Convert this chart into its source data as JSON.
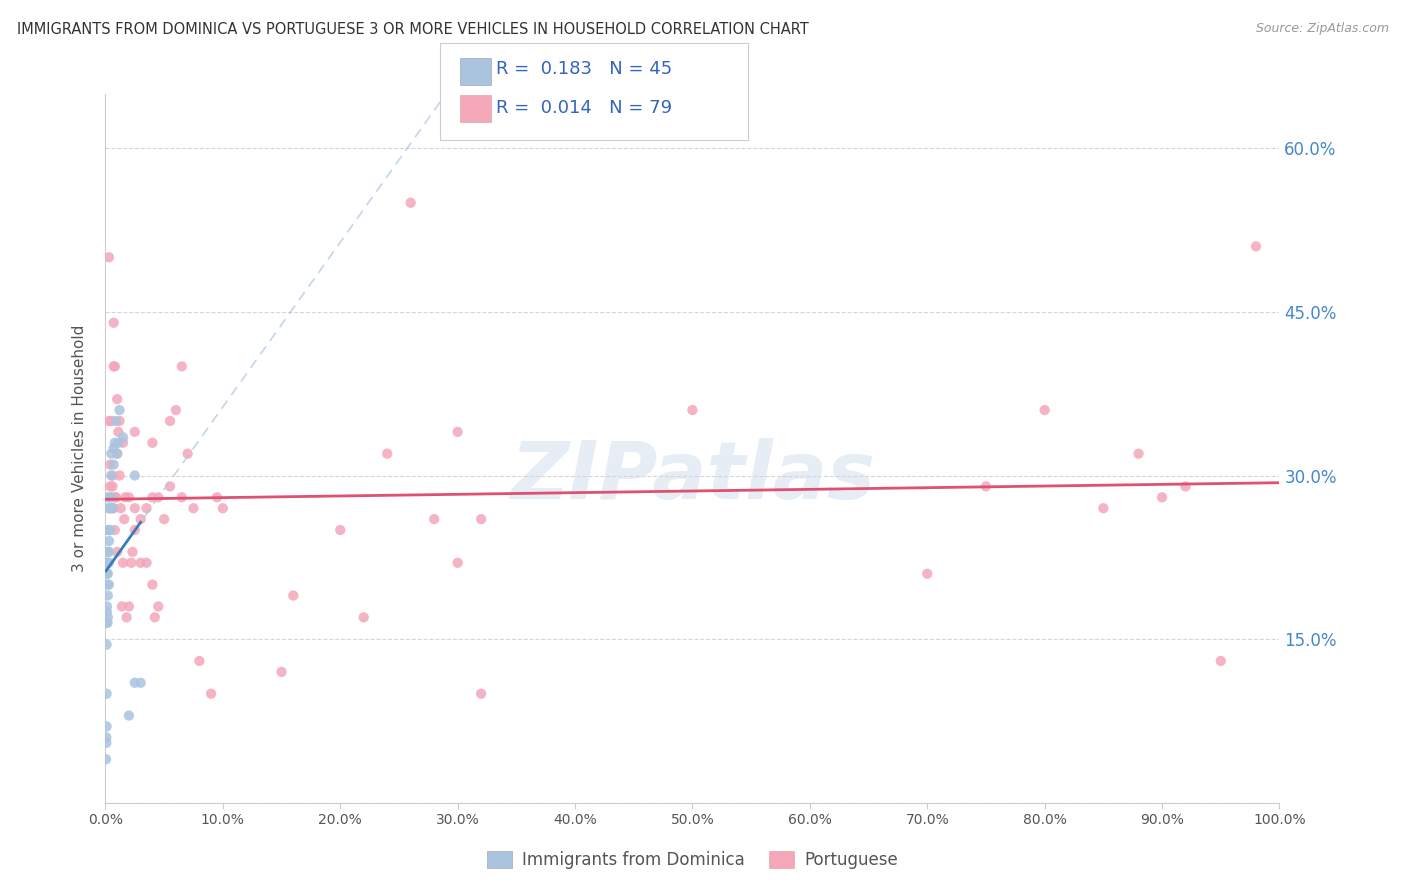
{
  "title": "IMMIGRANTS FROM DOMINICA VS PORTUGUESE 3 OR MORE VEHICLES IN HOUSEHOLD CORRELATION CHART",
  "source": "Source: ZipAtlas.com",
  "ylabel": "3 or more Vehicles in Household",
  "watermark": "ZIPatlas",
  "legend1_label": "Immigrants from Dominica",
  "legend2_label": "Portuguese",
  "R1": 0.183,
  "N1": 45,
  "R2": 0.014,
  "N2": 79,
  "color1": "#aac4e0",
  "color2": "#f4a7b9",
  "line1_color": "#3a7abf",
  "line2_color": "#e05070",
  "dashed_color": "#aac4e0",
  "title_color": "#333333",
  "source_color": "#999999",
  "grid_color": "#cccccc",
  "background_color": "#ffffff",
  "x_ticks": [
    0.0,
    0.1,
    0.2,
    0.3,
    0.4,
    0.5,
    0.6,
    0.7,
    0.8,
    0.9,
    1.0
  ],
  "x_tick_labels": [
    "0.0%",
    "10.0%",
    "20.0%",
    "30.0%",
    "40.0%",
    "50.0%",
    "60.0%",
    "70.0%",
    "80.0%",
    "90.0%",
    "100.0%"
  ],
  "y_ticks": [
    0.0,
    0.15,
    0.3,
    0.45,
    0.6
  ],
  "y_tick_labels": [
    "",
    "15.0%",
    "30.0%",
    "45.0%",
    "60.0%"
  ],
  "blue_scatter_x": [
    0.0005,
    0.0007,
    0.0008,
    0.001,
    0.001,
    0.001,
    0.001,
    0.0012,
    0.0013,
    0.0014,
    0.0015,
    0.0016,
    0.0017,
    0.0018,
    0.002,
    0.002,
    0.002,
    0.002,
    0.0022,
    0.0023,
    0.0025,
    0.003,
    0.003,
    0.003,
    0.003,
    0.003,
    0.0035,
    0.004,
    0.004,
    0.005,
    0.005,
    0.005,
    0.006,
    0.007,
    0.007,
    0.008,
    0.009,
    0.01,
    0.011,
    0.012,
    0.015,
    0.02,
    0.025,
    0.03,
    0.025
  ],
  "blue_scatter_y": [
    0.04,
    0.06,
    0.055,
    0.07,
    0.1,
    0.145,
    0.165,
    0.175,
    0.18,
    0.2,
    0.21,
    0.22,
    0.23,
    0.165,
    0.17,
    0.19,
    0.21,
    0.22,
    0.23,
    0.25,
    0.27,
    0.2,
    0.22,
    0.23,
    0.24,
    0.25,
    0.28,
    0.25,
    0.27,
    0.28,
    0.3,
    0.32,
    0.27,
    0.31,
    0.325,
    0.33,
    0.35,
    0.32,
    0.33,
    0.36,
    0.335,
    0.08,
    0.11,
    0.11,
    0.3
  ],
  "pink_scatter_x": [
    0.002,
    0.003,
    0.004,
    0.004,
    0.005,
    0.005,
    0.006,
    0.006,
    0.007,
    0.007,
    0.008,
    0.008,
    0.009,
    0.01,
    0.01,
    0.011,
    0.012,
    0.013,
    0.014,
    0.015,
    0.015,
    0.016,
    0.017,
    0.018,
    0.02,
    0.02,
    0.022,
    0.023,
    0.025,
    0.025,
    0.03,
    0.03,
    0.035,
    0.035,
    0.04,
    0.04,
    0.042,
    0.045,
    0.05,
    0.055,
    0.06,
    0.065,
    0.07,
    0.075,
    0.08,
    0.09,
    0.095,
    0.1,
    0.15,
    0.16,
    0.2,
    0.22,
    0.24,
    0.26,
    0.28,
    0.3,
    0.32,
    0.5,
    0.7,
    0.75,
    0.8,
    0.85,
    0.88,
    0.9,
    0.92,
    0.95,
    0.98,
    0.003,
    0.007,
    0.008,
    0.01,
    0.012,
    0.025,
    0.04,
    0.045,
    0.055,
    0.065,
    0.3,
    0.32
  ],
  "pink_scatter_y": [
    0.28,
    0.5,
    0.29,
    0.31,
    0.27,
    0.35,
    0.29,
    0.3,
    0.27,
    0.44,
    0.25,
    0.4,
    0.28,
    0.23,
    0.37,
    0.34,
    0.3,
    0.27,
    0.18,
    0.22,
    0.33,
    0.26,
    0.28,
    0.17,
    0.18,
    0.28,
    0.22,
    0.23,
    0.25,
    0.34,
    0.22,
    0.26,
    0.22,
    0.27,
    0.2,
    0.33,
    0.17,
    0.18,
    0.26,
    0.29,
    0.36,
    0.28,
    0.32,
    0.27,
    0.13,
    0.1,
    0.28,
    0.27,
    0.12,
    0.19,
    0.25,
    0.17,
    0.32,
    0.55,
    0.26,
    0.34,
    0.1,
    0.36,
    0.21,
    0.29,
    0.36,
    0.27,
    0.32,
    0.28,
    0.29,
    0.13,
    0.51,
    0.35,
    0.4,
    0.28,
    0.32,
    0.35,
    0.27,
    0.28,
    0.28,
    0.35,
    0.4,
    0.22,
    0.26
  ]
}
